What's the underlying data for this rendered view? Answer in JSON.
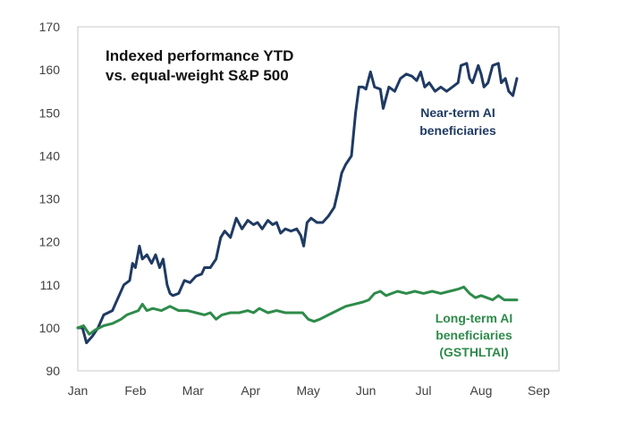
{
  "chart_data": {
    "type": "line",
    "title": [
      "Indexed performance YTD",
      "vs. equal-weight S&P 500"
    ],
    "xlabel": "",
    "ylabel": "",
    "ylim": [
      90,
      170
    ],
    "yticks": [
      90,
      100,
      110,
      120,
      130,
      140,
      150,
      160,
      170
    ],
    "xlim": [
      0,
      8.35
    ],
    "xticks": [
      {
        "label": "Jan",
        "pos": 0
      },
      {
        "label": "Feb",
        "pos": 1
      },
      {
        "label": "Mar",
        "pos": 2
      },
      {
        "label": "Apr",
        "pos": 3
      },
      {
        "label": "May",
        "pos": 4
      },
      {
        "label": "Jun",
        "pos": 5
      },
      {
        "label": "Jul",
        "pos": 6
      },
      {
        "label": "Aug",
        "pos": 7
      },
      {
        "label": "Sep",
        "pos": 8
      }
    ],
    "grid": false,
    "series": [
      {
        "name": "Near-term AI beneficiaries",
        "color": "#1f3a63",
        "label_lines": [
          "Near-term AI",
          "beneficiaries"
        ],
        "points": [
          [
            0.0,
            100
          ],
          [
            0.08,
            100
          ],
          [
            0.15,
            96.5
          ],
          [
            0.25,
            98
          ],
          [
            0.35,
            100
          ],
          [
            0.45,
            103
          ],
          [
            0.6,
            104
          ],
          [
            0.7,
            107
          ],
          [
            0.8,
            110
          ],
          [
            0.9,
            111
          ],
          [
            0.95,
            115
          ],
          [
            1.0,
            114
          ],
          [
            1.07,
            119
          ],
          [
            1.12,
            116
          ],
          [
            1.2,
            117
          ],
          [
            1.28,
            115
          ],
          [
            1.35,
            117
          ],
          [
            1.42,
            114
          ],
          [
            1.48,
            116
          ],
          [
            1.55,
            110
          ],
          [
            1.6,
            108
          ],
          [
            1.65,
            107.5
          ],
          [
            1.75,
            108
          ],
          [
            1.85,
            111
          ],
          [
            1.95,
            110.5
          ],
          [
            2.05,
            112
          ],
          [
            2.15,
            112.5
          ],
          [
            2.2,
            114
          ],
          [
            2.3,
            114
          ],
          [
            2.4,
            116
          ],
          [
            2.48,
            121
          ],
          [
            2.55,
            122.5
          ],
          [
            2.65,
            121
          ],
          [
            2.75,
            125.5
          ],
          [
            2.85,
            123
          ],
          [
            2.95,
            125
          ],
          [
            3.05,
            124
          ],
          [
            3.12,
            124.5
          ],
          [
            3.2,
            123
          ],
          [
            3.3,
            125
          ],
          [
            3.38,
            124
          ],
          [
            3.45,
            124.5
          ],
          [
            3.52,
            122
          ],
          [
            3.6,
            123
          ],
          [
            3.7,
            122.5
          ],
          [
            3.8,
            123
          ],
          [
            3.87,
            121.5
          ],
          [
            3.92,
            119
          ],
          [
            3.98,
            124.5
          ],
          [
            4.05,
            125.5
          ],
          [
            4.15,
            124.5
          ],
          [
            4.25,
            124.5
          ],
          [
            4.35,
            126
          ],
          [
            4.45,
            128
          ],
          [
            4.52,
            132
          ],
          [
            4.58,
            136
          ],
          [
            4.65,
            138
          ],
          [
            4.75,
            140
          ],
          [
            4.82,
            150
          ],
          [
            4.88,
            156
          ],
          [
            4.95,
            156
          ],
          [
            5.0,
            155.5
          ],
          [
            5.08,
            159.5
          ],
          [
            5.15,
            156
          ],
          [
            5.25,
            155.5
          ],
          [
            5.3,
            151
          ],
          [
            5.4,
            156
          ],
          [
            5.5,
            155
          ],
          [
            5.6,
            158
          ],
          [
            5.7,
            159
          ],
          [
            5.8,
            158.5
          ],
          [
            5.88,
            157.5
          ],
          [
            5.95,
            159.5
          ],
          [
            6.02,
            156
          ],
          [
            6.1,
            157
          ],
          [
            6.2,
            155
          ],
          [
            6.3,
            156
          ],
          [
            6.4,
            155
          ],
          [
            6.5,
            156
          ],
          [
            6.6,
            157
          ],
          [
            6.65,
            161
          ],
          [
            6.75,
            161.5
          ],
          [
            6.8,
            158
          ],
          [
            6.85,
            157
          ],
          [
            6.95,
            161
          ],
          [
            7.0,
            159
          ],
          [
            7.05,
            156
          ],
          [
            7.12,
            157
          ],
          [
            7.2,
            161
          ],
          [
            7.3,
            161.5
          ],
          [
            7.35,
            157
          ],
          [
            7.42,
            158
          ],
          [
            7.48,
            155
          ],
          [
            7.55,
            154
          ],
          [
            7.62,
            158
          ]
        ]
      },
      {
        "name": "Long-term AI beneficiaries (GSTHLTAI)",
        "color": "#2e8b4a",
        "label_lines": [
          "Long-term AI",
          "beneficiaries",
          "(GSTHLTAI)"
        ],
        "points": [
          [
            0.0,
            100
          ],
          [
            0.1,
            100.5
          ],
          [
            0.2,
            98.5
          ],
          [
            0.3,
            99.5
          ],
          [
            0.45,
            100.5
          ],
          [
            0.6,
            101
          ],
          [
            0.75,
            102
          ],
          [
            0.85,
            103
          ],
          [
            0.95,
            103.5
          ],
          [
            1.05,
            104
          ],
          [
            1.12,
            105.5
          ],
          [
            1.2,
            104
          ],
          [
            1.3,
            104.5
          ],
          [
            1.45,
            104
          ],
          [
            1.6,
            105
          ],
          [
            1.75,
            104
          ],
          [
            1.9,
            104
          ],
          [
            2.05,
            103.5
          ],
          [
            2.2,
            103
          ],
          [
            2.3,
            103.5
          ],
          [
            2.4,
            102
          ],
          [
            2.5,
            103
          ],
          [
            2.65,
            103.5
          ],
          [
            2.8,
            103.5
          ],
          [
            2.95,
            104
          ],
          [
            3.05,
            103.5
          ],
          [
            3.15,
            104.5
          ],
          [
            3.3,
            103.5
          ],
          [
            3.45,
            104
          ],
          [
            3.6,
            103.5
          ],
          [
            3.75,
            103.5
          ],
          [
            3.9,
            103.5
          ],
          [
            4.0,
            102
          ],
          [
            4.1,
            101.5
          ],
          [
            4.2,
            102
          ],
          [
            4.35,
            103
          ],
          [
            4.5,
            104
          ],
          [
            4.65,
            105
          ],
          [
            4.8,
            105.5
          ],
          [
            4.95,
            106
          ],
          [
            5.05,
            106.5
          ],
          [
            5.15,
            108
          ],
          [
            5.25,
            108.5
          ],
          [
            5.35,
            107.5
          ],
          [
            5.45,
            108
          ],
          [
            5.55,
            108.5
          ],
          [
            5.7,
            108
          ],
          [
            5.85,
            108.5
          ],
          [
            6.0,
            108
          ],
          [
            6.15,
            108.5
          ],
          [
            6.3,
            108
          ],
          [
            6.45,
            108.5
          ],
          [
            6.6,
            109
          ],
          [
            6.7,
            109.5
          ],
          [
            6.8,
            108
          ],
          [
            6.9,
            107
          ],
          [
            7.0,
            107.5
          ],
          [
            7.1,
            107
          ],
          [
            7.2,
            106.5
          ],
          [
            7.3,
            107.5
          ],
          [
            7.4,
            106.5
          ],
          [
            7.5,
            106.5
          ],
          [
            7.62,
            106.5
          ]
        ]
      }
    ]
  }
}
